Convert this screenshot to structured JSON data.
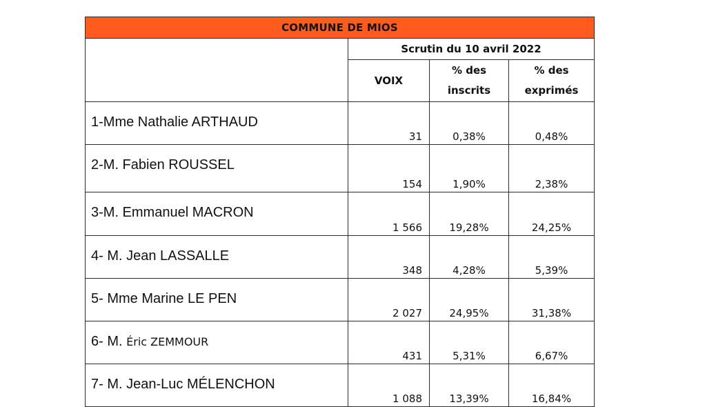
{
  "table": {
    "title": "COMMUNE DE MIOS",
    "scrutin": "Scrutin du 10 avril 2022",
    "headers": {
      "voix": "VOIX",
      "inscrits_1": "% des",
      "inscrits_2": "inscrits",
      "exprimes_1": "% des",
      "exprimes_2": "exprimés"
    },
    "rows": [
      {
        "prefix": "1-Mme Nathalie ARTHAUD",
        "suffix": "",
        "voix": "31",
        "inscrits": "0,38%",
        "exprimes": "0,48%"
      },
      {
        "prefix": "2-M. Fabien ROUSSEL",
        "suffix": "",
        "voix": "154",
        "inscrits": "1,90%",
        "exprimes": "2,38%"
      },
      {
        "prefix": "3-M. Emmanuel MACRON",
        "suffix": "",
        "voix": "1 566",
        "inscrits": "19,28%",
        "exprimes": "24,25%"
      },
      {
        "prefix": "4- M. Jean LASSALLE",
        "suffix": "",
        "voix": "348",
        "inscrits": "4,28%",
        "exprimes": "5,39%"
      },
      {
        "prefix": "5- Mme Marine LE PEN",
        "suffix": "",
        "voix": "2 027",
        "inscrits": "24,95%",
        "exprimes": "31,38%"
      },
      {
        "prefix": "6- M. ",
        "suffix": "Éric ZEMMOUR",
        "voix": "431",
        "inscrits": "5,31%",
        "exprimes": "6,67%"
      },
      {
        "prefix": "7- M. Jean-Luc MÉLENCHON",
        "suffix": "",
        "voix": "1 088",
        "inscrits": "13,39%",
        "exprimes": "16,84%"
      }
    ]
  },
  "colors": {
    "title_background": "#ff5b1f",
    "border": "#2a2a2a"
  }
}
